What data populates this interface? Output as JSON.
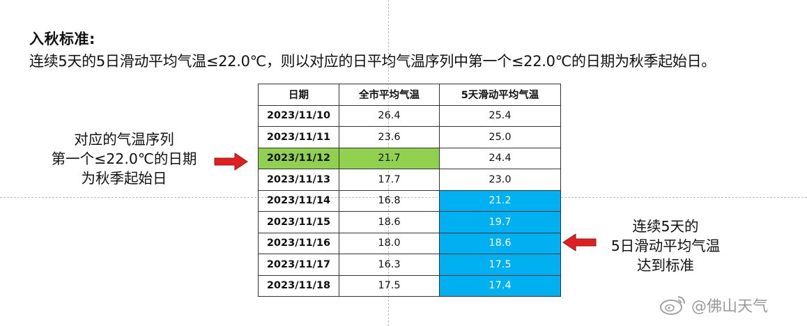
{
  "heading": "入秋标准:",
  "rule": "连续5天的5日滑动平均气温≤22.0℃，则以对应的日平均气温序列中第一个≤22.0℃的日期为秋季起始日。",
  "table": {
    "headers": [
      "日期",
      "全市平均气温",
      "5天滑动平均气温"
    ],
    "rows": [
      {
        "date": "2023/11/10",
        "avg": "26.4",
        "sliding": "25.4"
      },
      {
        "date": "2023/11/11",
        "avg": "23.6",
        "sliding": "25.0"
      },
      {
        "date": "2023/11/12",
        "avg": "21.7",
        "sliding": "24.4"
      },
      {
        "date": "2023/11/13",
        "avg": "17.7",
        "sliding": "23.0"
      },
      {
        "date": "2023/11/14",
        "avg": "16.8",
        "sliding": "21.2"
      },
      {
        "date": "2023/11/15",
        "avg": "18.6",
        "sliding": "19.7"
      },
      {
        "date": "2023/11/16",
        "avg": "18.0",
        "sliding": "18.6"
      },
      {
        "date": "2023/11/17",
        "avg": "16.3",
        "sliding": "17.5"
      },
      {
        "date": "2023/11/18",
        "avg": "17.5",
        "sliding": "17.4"
      }
    ]
  },
  "highlight_colors": {
    "first_day": "#92d050",
    "sliding_met": "#00b0f0",
    "arrow": "#e02020"
  },
  "note_left": [
    "对应的气温序列",
    "第一个≤22.0℃的日期",
    "为秋季起始日"
  ],
  "note_right": [
    "连续5天的",
    "5日滑动平均气温",
    "达到标准"
  ],
  "watermark": {
    "icon": "weibo-icon",
    "text": "@佛山天气"
  }
}
